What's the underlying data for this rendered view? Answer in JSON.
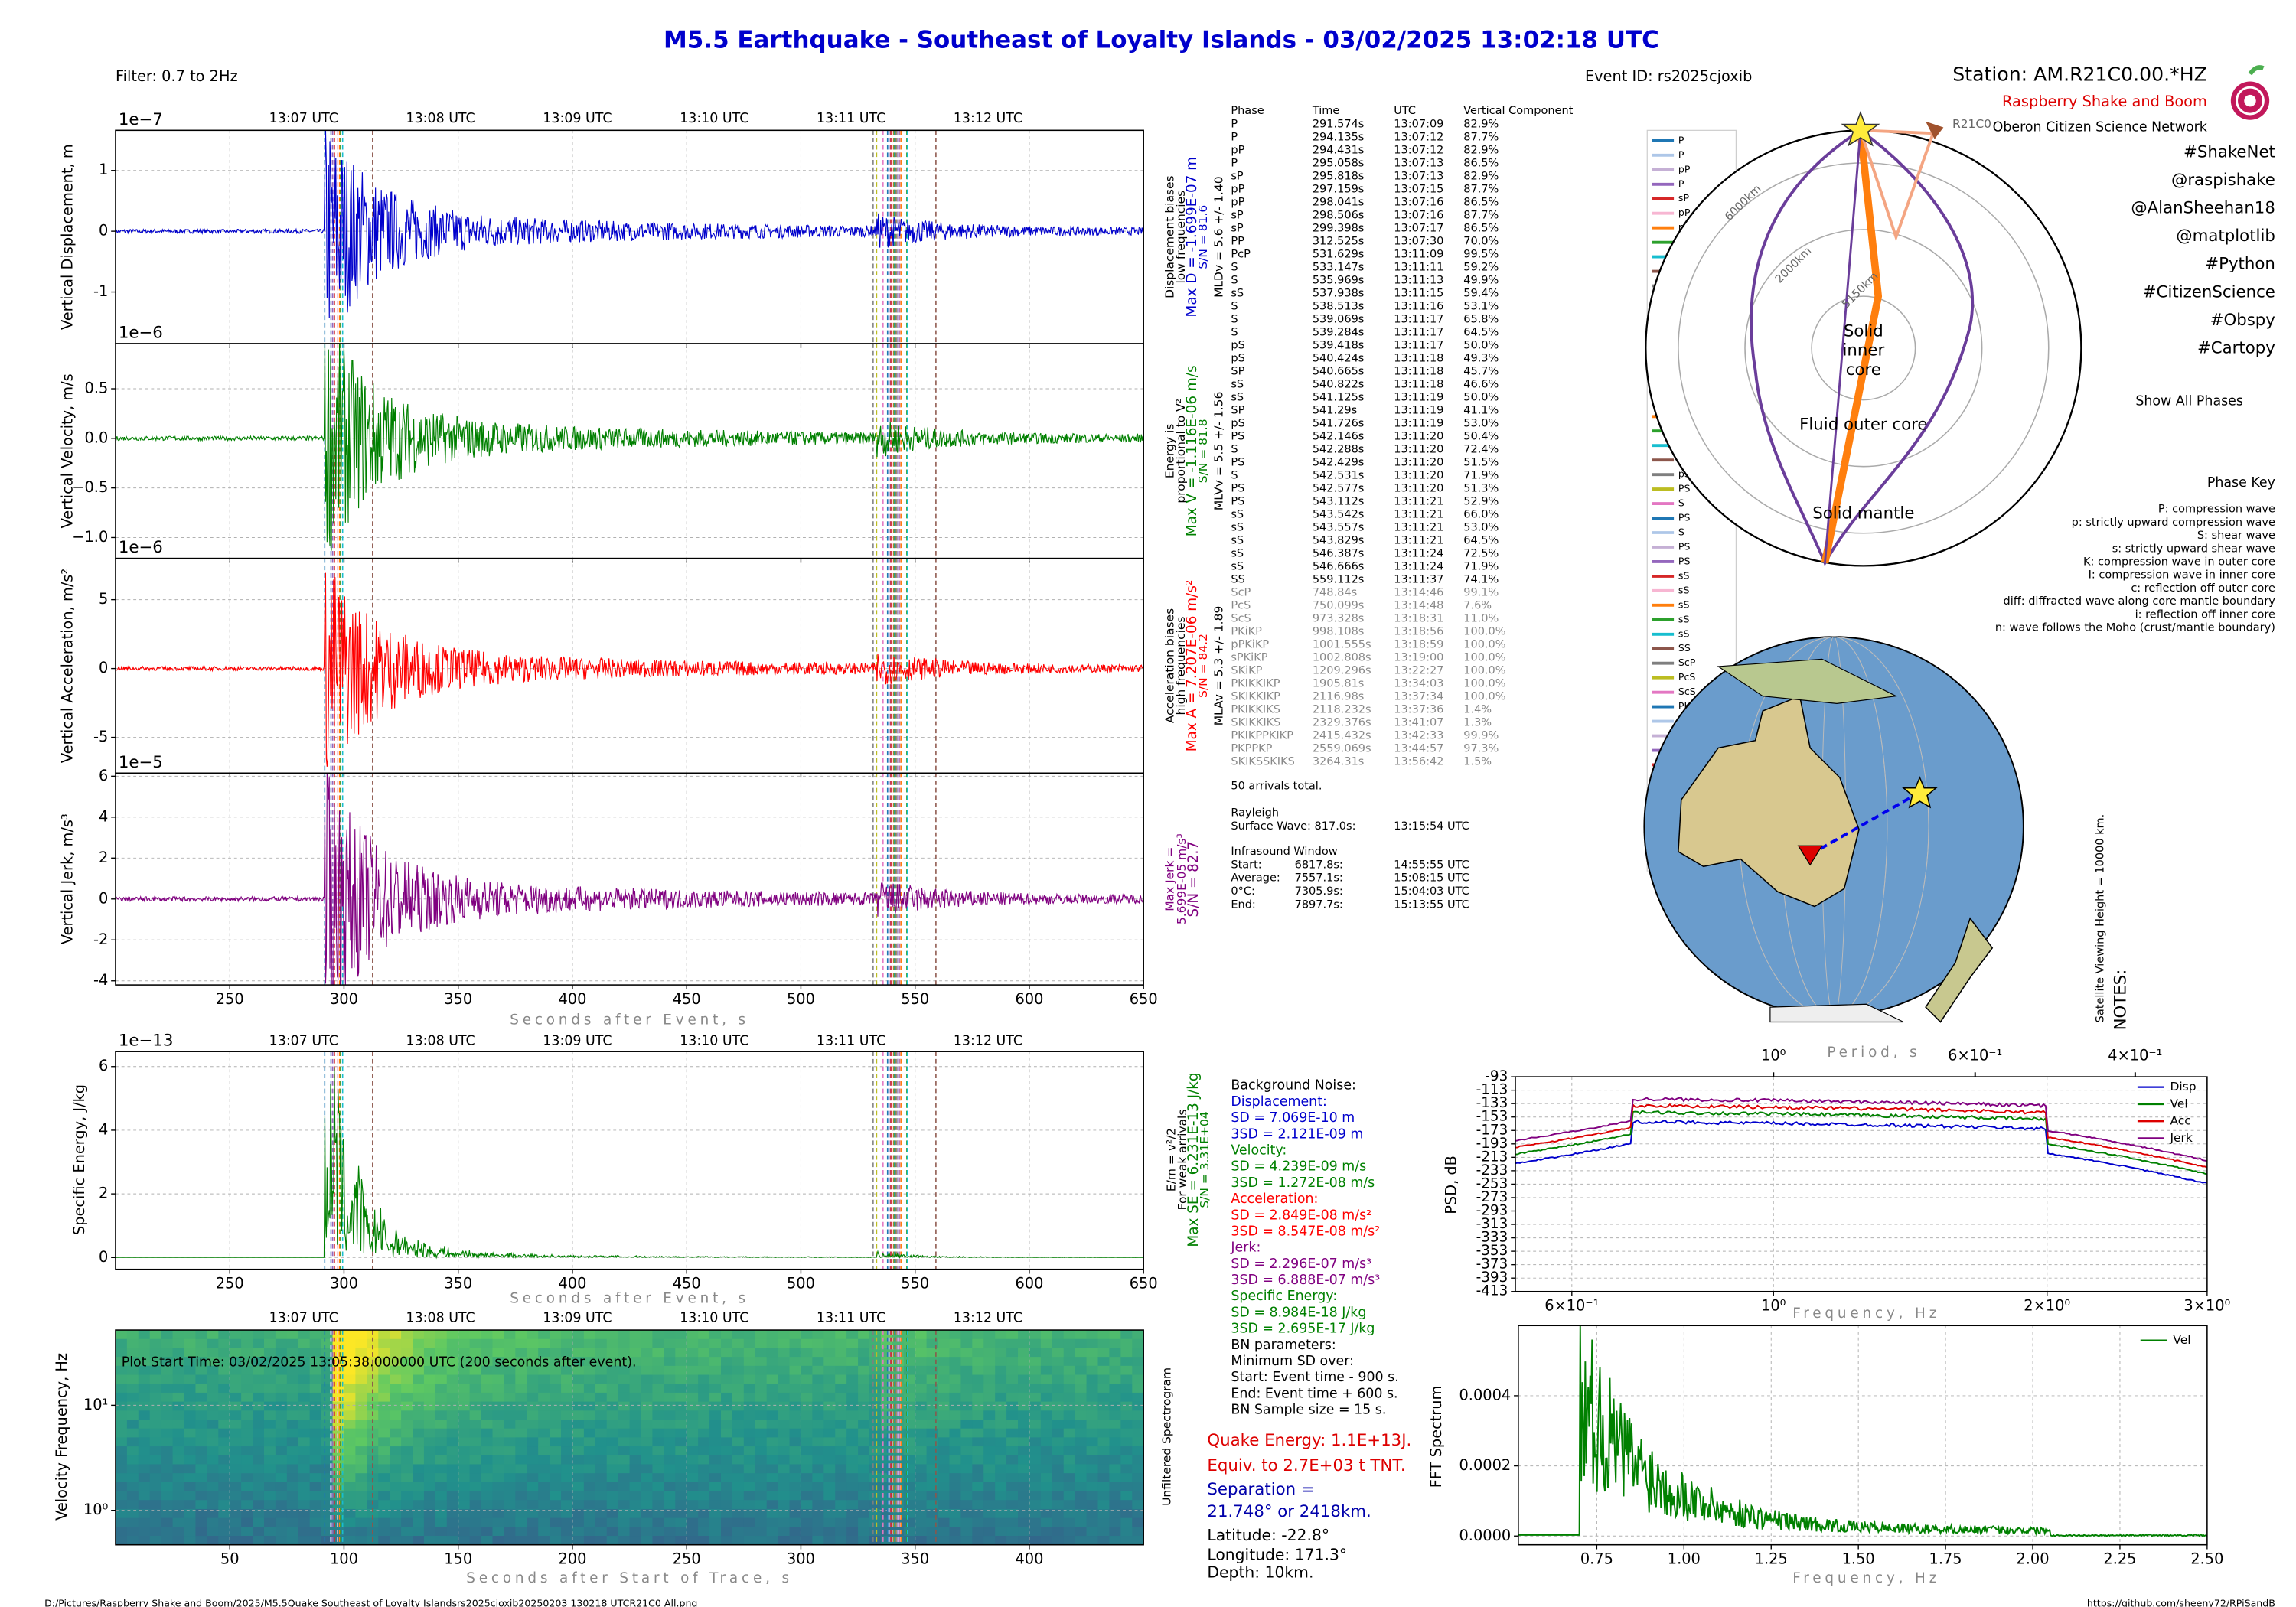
{
  "title": "M5.5 Earthquake - Southeast of Loyalty Islands -  03/02/2025 13:02:18 UTC",
  "filter": "Filter: 0.7 to 2Hz",
  "event_id": "Event ID: rs2025cjoxib",
  "station": "Station: AM.R21C0.00.*HZ",
  "network": "Raspberry Shake and Boom",
  "org": "Oberon Citizen Science Network",
  "hashtags": [
    "#ShakeNet",
    "@raspishake",
    "@AlanSheehan18",
    "@matplotlib",
    "#Python",
    "#CitizenScience",
    "#Obspy",
    "#Cartopy"
  ],
  "utc_ticks": [
    "13:07 UTC",
    "13:08 UTC",
    "13:09 UTC",
    "13:10 UTC",
    "13:11 UTC",
    "13:12 UTC"
  ],
  "time_axis": {
    "xlim": [
      200,
      650
    ],
    "xticks": [
      250,
      300,
      350,
      400,
      450,
      500,
      550,
      600,
      650
    ],
    "xlabel": "Seconds after Event, s"
  },
  "waveform_panels": [
    {
      "ylabel": "Vertical Displacement, m",
      "exponent": "1e−7",
      "color": "#0000cc",
      "ylim": [
        -1.85,
        1.66
      ],
      "yticks": [
        -1,
        0,
        1
      ],
      "notes": [
        {
          "text": "Displacement biases",
          "color": "#000"
        },
        {
          "text": "low frequencies",
          "color": "#000"
        },
        {
          "text": "Max D = -1.699E-07 m",
          "color": "#0000cc"
        },
        {
          "text": "S/N = 81.6",
          "color": "#0000cc"
        },
        {
          "text": "MLDv = 5.6 +/- 1.40",
          "color": "#000"
        }
      ]
    },
    {
      "ylabel": "Vertical Velocity, m/s",
      "exponent": "1e−6",
      "color": "#008000",
      "ylim": [
        -1.21,
        0.955
      ],
      "yticks": [
        {
          "value": -1,
          "label": "−1.0"
        },
        {
          "value": -0.5,
          "label": "−0.5"
        },
        {
          "value": 0,
          "label": "0.0"
        },
        {
          "value": 0.5,
          "label": "0.5"
        }
      ],
      "notes": [
        {
          "text": "Energy is",
          "color": "#000"
        },
        {
          "text": "proportional to V²",
          "color": "#000"
        },
        {
          "text": "Max V = -1.116E-06 m/s",
          "color": "#008000"
        },
        {
          "text": "S/N = 81.8",
          "color": "#008000"
        },
        {
          "text": "MLVv = 5.5 +/- 1.56",
          "color": "#000"
        }
      ]
    },
    {
      "ylabel": "Vertical Acceleration, m/s²",
      "exponent": "1e−6",
      "color": "#ff0000",
      "ylim": [
        -7.6,
        8.0
      ],
      "yticks": [
        -5,
        0,
        5
      ],
      "notes": [
        {
          "text": "Acceleration biases",
          "color": "#000"
        },
        {
          "text": "high frequencies",
          "color": "#000"
        },
        {
          "text": "Max A = 7.207E-06 m/s²",
          "color": "#ff0000"
        },
        {
          "text": "S/N = 84.2",
          "color": "#ff0000"
        },
        {
          "text": "MLAv = 5.3 +/- 1.89",
          "color": "#000"
        }
      ]
    },
    {
      "ylabel": "Vertical Jerk, m/s³",
      "exponent": "1e−5",
      "color": "#800080",
      "ylim": [
        -4.2,
        6.15
      ],
      "yticks": [
        -4,
        -2,
        0,
        2,
        4,
        6
      ],
      "notes": [
        {
          "text": "Max Jerk =",
          "color": "#800080"
        },
        {
          "text": "5.699E-05 m/s³",
          "color": "#800080"
        },
        {
          "text": "S/N = 82.7",
          "color": "#800080"
        }
      ]
    }
  ],
  "energy_panel": {
    "ylabel": "Specific Energy, J/kg",
    "exponent": "1e−13",
    "color": "#008000",
    "ylim": [
      -0.37,
      6.47
    ],
    "yticks": [
      0,
      2,
      4,
      6
    ],
    "notes": [
      {
        "text": "E/m = v²/2",
        "color": "#000"
      },
      {
        "text": "For weak arrivals",
        "color": "#000"
      },
      {
        "text": "Max SE = 6.231E-13 J/kg",
        "color": "#008000"
      },
      {
        "text": "S/N = 3.31E+04",
        "color": "#008000"
      }
    ]
  },
  "spectrogram": {
    "ylabel": "Velocity Frequency, Hz",
    "ylim": [
      0.47,
      52
    ],
    "ylog": true,
    "yticks": [
      {
        "value": 1,
        "label": "10⁰"
      },
      {
        "value": 10,
        "label": "10¹"
      }
    ],
    "xlim": [
      0,
      450
    ],
    "xticks": [
      50,
      100,
      150,
      200,
      250,
      300,
      350,
      400
    ],
    "xlabel": "Seconds after Start of Trace, s",
    "note": "Plot Start Time:  03/02/2025 13:05:38.000000 UTC (200 seconds after event).",
    "side": "Unfiltered Spectrogram"
  },
  "phase_table": {
    "header": [
      "Phase",
      "Time",
      "UTC",
      "Vertical Component"
    ],
    "rows": [
      [
        "P",
        "291.574s",
        "13:07:09",
        "82.9%"
      ],
      [
        "P",
        "294.135s",
        "13:07:12",
        "87.7%"
      ],
      [
        "pP",
        "294.431s",
        "13:07:12",
        "82.9%"
      ],
      [
        "P",
        "295.058s",
        "13:07:13",
        "86.5%"
      ],
      [
        "sP",
        "295.818s",
        "13:07:13",
        "82.9%"
      ],
      [
        "pP",
        "297.159s",
        "13:07:15",
        "87.7%"
      ],
      [
        "pP",
        "298.041s",
        "13:07:16",
        "86.5%"
      ],
      [
        "sP",
        "298.506s",
        "13:07:16",
        "87.7%"
      ],
      [
        "sP",
        "299.398s",
        "13:07:17",
        "86.5%"
      ],
      [
        "PP",
        "312.525s",
        "13:07:30",
        "70.0%"
      ],
      [
        "PcP",
        "531.629s",
        "13:11:09",
        "99.5%"
      ],
      [
        "S",
        "533.147s",
        "13:11:11",
        "59.2%"
      ],
      [
        "S",
        "535.969s",
        "13:11:13",
        "49.9%"
      ],
      [
        "sS",
        "537.938s",
        "13:11:15",
        "59.4%"
      ],
      [
        "S",
        "538.513s",
        "13:11:16",
        "53.1%"
      ],
      [
        "S",
        "539.069s",
        "13:11:17",
        "65.8%"
      ],
      [
        "S",
        "539.284s",
        "13:11:17",
        "64.5%"
      ],
      [
        "pS",
        "539.418s",
        "13:11:17",
        "50.0%"
      ],
      [
        "pS",
        "540.424s",
        "13:11:18",
        "49.3%"
      ],
      [
        "SP",
        "540.665s",
        "13:11:18",
        "45.7%"
      ],
      [
        "sS",
        "540.822s",
        "13:11:18",
        "46.6%"
      ],
      [
        "sS",
        "541.125s",
        "13:11:19",
        "50.0%"
      ],
      [
        "SP",
        "541.29s",
        "13:11:19",
        "41.1%"
      ],
      [
        "pS",
        "541.726s",
        "13:11:19",
        "53.0%"
      ],
      [
        "PS",
        "542.146s",
        "13:11:20",
        "50.4%"
      ],
      [
        "S",
        "542.288s",
        "13:11:20",
        "72.4%"
      ],
      [
        "PS",
        "542.429s",
        "13:11:20",
        "51.5%"
      ],
      [
        "S",
        "542.531s",
        "13:11:20",
        "71.9%"
      ],
      [
        "PS",
        "542.577s",
        "13:11:20",
        "51.3%"
      ],
      [
        "PS",
        "543.112s",
        "13:11:21",
        "52.9%"
      ],
      [
        "sS",
        "543.542s",
        "13:11:21",
        "66.0%"
      ],
      [
        "sS",
        "543.557s",
        "13:11:21",
        "53.0%"
      ],
      [
        "sS",
        "543.829s",
        "13:11:21",
        "64.5%"
      ],
      [
        "sS",
        "546.387s",
        "13:11:24",
        "72.5%"
      ],
      [
        "sS",
        "546.666s",
        "13:11:24",
        "71.9%"
      ],
      [
        "SS",
        "559.112s",
        "13:11:37",
        "74.1%"
      ],
      [
        "ScP",
        "748.84s",
        "13:14:46",
        "99.1%"
      ],
      [
        "PcS",
        "750.099s",
        "13:14:48",
        "7.6%"
      ],
      [
        "ScS",
        "973.328s",
        "13:18:31",
        "11.0%"
      ],
      [
        "PKiKP",
        "998.108s",
        "13:18:56",
        "100.0%"
      ],
      [
        "pPKiKP",
        "1001.555s",
        "13:18:59",
        "100.0%"
      ],
      [
        "sPKiKP",
        "1002.808s",
        "13:19:00",
        "100.0%"
      ],
      [
        "SKiKP",
        "1209.296s",
        "13:22:27",
        "100.0%"
      ],
      [
        "PKIKKIKP",
        "1905.81s",
        "13:34:03",
        "100.0%"
      ],
      [
        "SKIKKIKP",
        "2116.98s",
        "13:37:34",
        "100.0%"
      ],
      [
        "PKIKKIKS",
        "2118.232s",
        "13:37:36",
        "1.4%"
      ],
      [
        "SKIKKIKS",
        "2329.376s",
        "13:41:07",
        "1.3%"
      ],
      [
        "PKIKPPKIKP",
        "2415.432s",
        "13:42:33",
        "99.9%"
      ],
      [
        "PKPPKP",
        "2559.069s",
        "13:44:57",
        "97.3%"
      ],
      [
        "SKIKSSKIKS",
        "3264.31s",
        "13:56:42",
        "1.5%"
      ]
    ]
  },
  "arrivals_total": "50 arrivals total.",
  "rayleigh": {
    "title": "Rayleigh",
    "label": "Surface Wave: 817.0s:",
    "utc": "13:15:54 UTC"
  },
  "infrasound": {
    "title": "Infrasound Window",
    "rows": [
      [
        "Start:",
        "6817.8s:",
        "14:55:55 UTC"
      ],
      [
        "Average:",
        "7557.1s:",
        "15:08:15 UTC"
      ],
      [
        "0°C:",
        "7305.9s:",
        "15:04:03 UTC"
      ],
      [
        "End:",
        "7897.7s:",
        "15:13:55 UTC"
      ]
    ]
  },
  "background_noise": [
    {
      "text": "Background Noise:",
      "color": "#000"
    },
    {
      "text": "Displacement:",
      "color": "#0000cc"
    },
    {
      "text": "SD = 7.069E-10 m",
      "color": "#0000cc"
    },
    {
      "text": "3SD = 2.121E-09 m",
      "color": "#0000cc"
    },
    {
      "text": "Velocity:",
      "color": "#008000"
    },
    {
      "text": "SD = 4.239E-09 m/s",
      "color": "#008000"
    },
    {
      "text": "3SD = 1.272E-08 m/s",
      "color": "#008000"
    },
    {
      "text": "Acceleration:",
      "color": "#ff0000"
    },
    {
      "text": "SD = 2.849E-08 m/s²",
      "color": "#ff0000"
    },
    {
      "text": "3SD = 8.547E-08 m/s²",
      "color": "#ff0000"
    },
    {
      "text": "Jerk:",
      "color": "#800080"
    },
    {
      "text": "SD = 2.296E-07 m/s³",
      "color": "#800080"
    },
    {
      "text": "3SD = 6.888E-07 m/s³",
      "color": "#800080"
    },
    {
      "text": "Specific Energy:",
      "color": "#008000"
    },
    {
      "text": "SD = 8.984E-18 J/kg",
      "color": "#008000"
    },
    {
      "text": "3SD = 2.695E-17 J/kg",
      "color": "#008000"
    },
    {
      "text": "BN parameters:",
      "color": "#000"
    },
    {
      "text": "Minimum SD over:",
      "color": "#000"
    },
    {
      "text": "Start: Event time - 900 s.",
      "color": "#000"
    },
    {
      "text": "End: Event time + 600 s.",
      "color": "#000"
    },
    {
      "text": "BN Sample size = 15 s.",
      "color": "#000"
    }
  ],
  "summary": [
    {
      "text": "Quake Energy: 1.1E+13J.",
      "color": "#dd0000"
    },
    {
      "text": "Equiv. to 2.7E+03 t TNT.",
      "color": "#dd0000"
    },
    {
      "text": "Separation =",
      "color": "#0000aa"
    },
    {
      "text": "21.748° or 2418km.",
      "color": "#0000aa"
    },
    {
      "text": "Latitude: -22.8°",
      "color": "#000"
    },
    {
      "text": "Longitude: 171.3°",
      "color": "#000"
    },
    {
      "text": "Depth: 10km.",
      "color": "#000"
    }
  ],
  "ray_diagram": {
    "station": "R21C0",
    "inner": [
      "Solid",
      "inner",
      "core"
    ],
    "outer": "Fluid outer core",
    "mantle": "Solid mantle",
    "depths": [
      "6000km",
      "2000km",
      "5150km"
    ]
  },
  "show_all": "Show All Phases",
  "phase_key": [
    "Phase Key",
    "P:   compression wave",
    "p:   strictly upward compression wave",
    "S:   shear wave",
    "s:   strictly upward shear wave",
    "K:   compression wave in outer core",
    "I:   compression wave in inner core",
    "c:   reflection off outer core",
    "diff:   diffracted wave along core mantle boundary",
    "i:   reflection off inner core",
    "n:   wave follows the Moho (crust/mantle boundary)"
  ],
  "satellite": "Satellite Viewing Height = 10000 km.",
  "notes": "NOTES:",
  "psd": {
    "ylabel": "PSD, dB",
    "ylim": [
      -413,
      -93
    ],
    "yticks": [
      -93,
      -113,
      -133,
      -153,
      -173,
      -193,
      -213,
      -233,
      -253,
      -273,
      -293,
      -313,
      -333,
      -353,
      -373,
      -393,
      -413
    ],
    "xlim": [
      0.52,
      3
    ],
    "xlog": true,
    "xticks": [
      {
        "value": 0.6,
        "label": "6×10⁻¹"
      },
      {
        "value": 1,
        "label": "10⁰"
      },
      {
        "value": 2,
        "label": "2×10⁰"
      },
      {
        "value": 3,
        "label": "3×10⁰"
      }
    ],
    "period_ticks": [
      {
        "value": 1,
        "label": "10⁰"
      },
      {
        "value": 0.6,
        "label": "6×10⁻¹"
      },
      {
        "value": 0.4,
        "label": "4×10⁻¹"
      }
    ],
    "period_label": "Period, s",
    "xlabel": "Frequency, Hz",
    "series": [
      {
        "name": "Disp",
        "color": "#0000cc"
      },
      {
        "name": "Vel",
        "color": "#008000"
      },
      {
        "name": "Acc",
        "color": "#dd0000"
      },
      {
        "name": "Jerk",
        "color": "#800080"
      }
    ]
  },
  "fft": {
    "ylabel": "FFT Spectrum",
    "ylim": [
      -2.5e-05,
      0.0006
    ],
    "yticks": [
      {
        "value": 0,
        "label": "0.0000"
      },
      {
        "value": 0.0002,
        "label": "0.0002"
      },
      {
        "value": 0.0004,
        "label": "0.0004"
      }
    ],
    "xlim": [
      0.525,
      2.5
    ],
    "xticks": [
      0.75,
      {
        "value": 1,
        "label": "1.00"
      },
      1.25,
      {
        "value": 1.5,
        "label": "1.50"
      },
      1.75,
      {
        "value": 2,
        "label": "2.00"
      },
      2.25,
      {
        "value": 2.5,
        "label": "2.50"
      }
    ],
    "xlabel": "Frequency, Hz",
    "series": [
      {
        "name": "Vel",
        "color": "#008000"
      }
    ]
  },
  "footer_path": "D:/Pictures/Raspberry Shake and Boom/2025/M5.5Quake Southeast of Loyalty Islandsrs2025cjoxib20250203 130218 UTCR21C0 All.png",
  "footer_url": "https://github.com/sheeny72/RPiSandB"
}
